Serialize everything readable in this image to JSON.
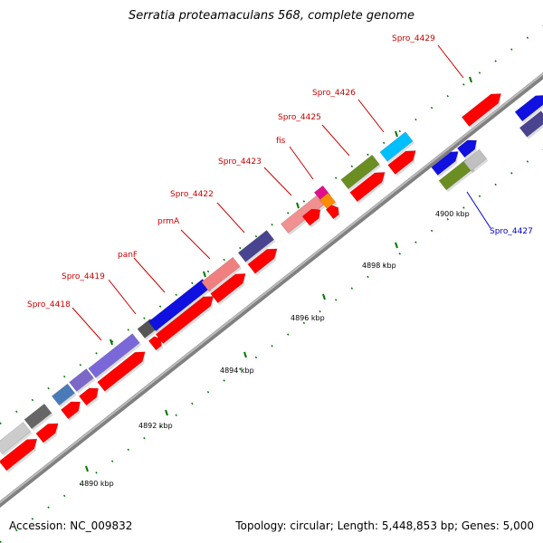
{
  "title": "Serratia proteamaculans 568, complete genome",
  "footer": {
    "accession": "Accession: NC_009832",
    "summary": "Topology: circular; Length: 5,448,853 bp; Genes: 5,000"
  },
  "ticks": [
    "4890 kbp",
    "4892 kbp",
    "4894 kbp",
    "4896 kbp",
    "4898 kbp",
    "4900 kbp"
  ],
  "labels": [
    {
      "text": "Spro_4418",
      "color": "#cc0000"
    },
    {
      "text": "Spro_4419",
      "color": "#cc0000"
    },
    {
      "text": "panF",
      "color": "#cc0000"
    },
    {
      "text": "prmA",
      "color": "#cc0000"
    },
    {
      "text": "Spro_4422",
      "color": "#cc0000"
    },
    {
      "text": "Spro_4423",
      "color": "#cc0000"
    },
    {
      "text": "fis",
      "color": "#cc0000"
    },
    {
      "text": "Spro_4425",
      "color": "#cc0000"
    },
    {
      "text": "Spro_4426",
      "color": "#cc0000"
    },
    {
      "text": "Spro_4429",
      "color": "#cc0000"
    },
    {
      "text": "Spro_4427",
      "color": "#0000cc"
    }
  ],
  "colors": {
    "backbone": "#999999",
    "tick": "#007700",
    "cds": "#ff0000",
    "forward_label": "#cc0000",
    "reverse_label": "#0000cc"
  }
}
